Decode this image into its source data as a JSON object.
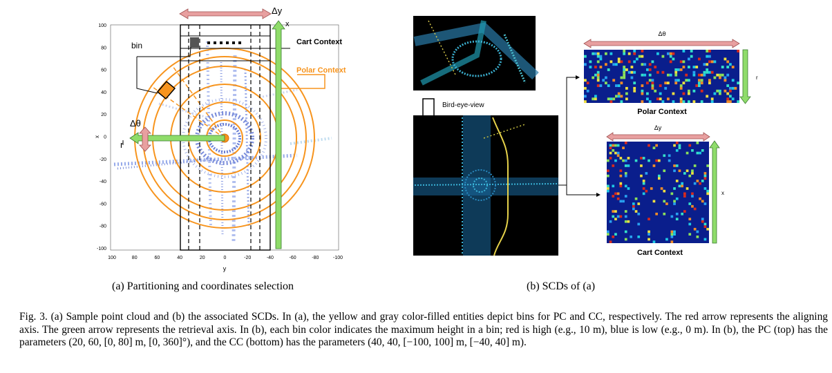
{
  "figure": {
    "left_panel": {
      "y_axis_label": "x",
      "x_axis_label": "y",
      "y_ticks": [
        "100",
        "80",
        "60",
        "40",
        "20",
        "0",
        "-20",
        "-40",
        "-60",
        "-80",
        "-100"
      ],
      "x_ticks": [
        "100",
        "80",
        "60",
        "40",
        "20",
        "0",
        "-20",
        "-40",
        "-60",
        "-80",
        "-100"
      ],
      "label_bin": "bin",
      "label_cart": "Cart Context",
      "label_polar": "Polar Context",
      "label_dy": "Δy",
      "label_x_arrow": "x",
      "label_dtheta": "Δθ",
      "label_r": "r"
    },
    "right_panel": {
      "bev_label": "Bird-eye-view",
      "polar_dtheta": "Δθ",
      "polar_r": "r",
      "polar_title": "Polar Context",
      "cart_dy": "Δy",
      "cart_x": "x",
      "cart_title": "Cart Context"
    },
    "subcaption_a": "(a) Partitioning and coordinates selection",
    "subcaption_b": "(b) SCDs of (a)"
  },
  "caption": {
    "prefix": "Fig. 3.",
    "text": "(a) Sample point cloud and (b) the associated SCDs. In (a), the yellow and gray color-filled entities depict bins for PC and CC, respectively. The red arrow represents the aligning axis. The green arrow represents the retrieval axis. In (b), each bin color indicates the maximum height in a bin; red is high (e.g., 10 m), blue is low (e.g., 0 m). In (b), the PC (top) has the parameters (20, 60, [0, 80] m, [0, 360]°), and the CC (bottom) has the parameters (40, 40, [−100, 100] m, [−40, 40] m)."
  },
  "colors": {
    "orange": "#f7941d",
    "pink_arrow": "#e8a0a0",
    "green_arrow": "#8fdc6a",
    "heatmap_bg": "#0a1e8c"
  }
}
